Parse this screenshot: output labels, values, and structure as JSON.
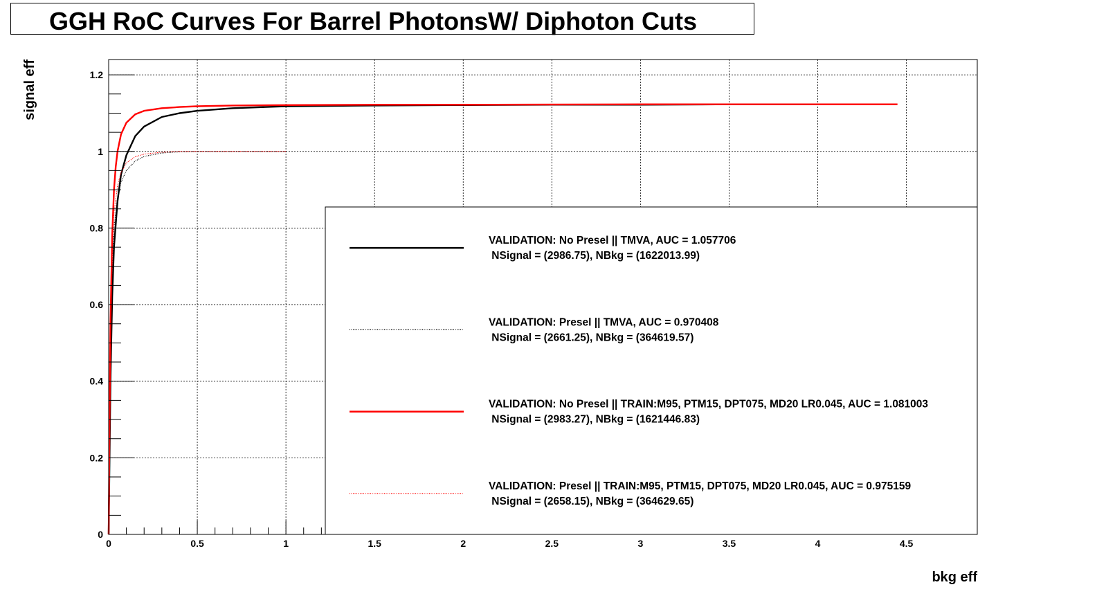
{
  "chart_data": {
    "type": "line",
    "title": "GGH RoC Curves For Barrel PhotonsW/ Diphoton Cuts",
    "xlabel": "bkg eff",
    "ylabel": "signal eff",
    "xlim": [
      0,
      4.9
    ],
    "ylim": [
      0,
      1.24
    ],
    "xticks": [
      {
        "v": 0,
        "label": "0"
      },
      {
        "v": 0.5,
        "label": "0.5"
      },
      {
        "v": 1,
        "label": "1"
      },
      {
        "v": 1.5,
        "label": "1.5"
      },
      {
        "v": 2,
        "label": "2"
      },
      {
        "v": 2.5,
        "label": "2.5"
      },
      {
        "v": 3,
        "label": "3"
      },
      {
        "v": 3.5,
        "label": "3.5"
      },
      {
        "v": 4,
        "label": "4"
      },
      {
        "v": 4.5,
        "label": "4.5"
      }
    ],
    "yticks": [
      {
        "v": 0,
        "label": "0"
      },
      {
        "v": 0.2,
        "label": "0.2"
      },
      {
        "v": 0.4,
        "label": "0.4"
      },
      {
        "v": 0.6,
        "label": "0.6"
      },
      {
        "v": 0.8,
        "label": "0.8"
      },
      {
        "v": 1,
        "label": "1"
      },
      {
        "v": 1.2,
        "label": "1.2"
      }
    ],
    "grid": true,
    "legend_position": "bottom-right",
    "series": [
      {
        "label_line1": "VALIDATION: No Presel || TMVA, AUC = 1.057706",
        "label_line2": " NSignal = (2986.75), NBkg = (1622013.99)",
        "color": "#000000",
        "style": "solid",
        "x": [
          0,
          0.005,
          0.01,
          0.02,
          0.03,
          0.05,
          0.07,
          0.1,
          0.15,
          0.2,
          0.3,
          0.4,
          0.5,
          0.7,
          1.0,
          1.5,
          2.0,
          2.5,
          3.0,
          3.5,
          4.0
        ],
        "y": [
          0,
          0.2,
          0.4,
          0.62,
          0.75,
          0.87,
          0.94,
          0.99,
          1.04,
          1.065,
          1.09,
          1.1,
          1.106,
          1.113,
          1.118,
          1.12,
          1.121,
          1.122,
          1.122,
          1.123,
          1.123
        ]
      },
      {
        "label_line1": "VALIDATION: Presel || TMVA, AUC = 0.970408",
        "label_line2": " NSignal = (2661.25), NBkg = (364619.57)",
        "color": "#000000",
        "style": "dotted",
        "x": [
          0,
          0.005,
          0.01,
          0.02,
          0.03,
          0.05,
          0.07,
          0.1,
          0.15,
          0.2,
          0.3,
          0.4,
          0.5,
          0.7,
          1.0
        ],
        "y": [
          0,
          0.3,
          0.5,
          0.7,
          0.8,
          0.88,
          0.92,
          0.95,
          0.975,
          0.987,
          0.996,
          0.999,
          1.0,
          1.0,
          1.0
        ]
      },
      {
        "label_line1": "VALIDATION: No Presel || TRAIN:M95, PTM15, DPT075, MD20 LR0.045, AUC = 1.081003",
        "label_line2": " NSignal = (2983.27), NBkg = (1621446.83)",
        "color": "#ff0000",
        "style": "solid",
        "x": [
          0,
          0.005,
          0.01,
          0.02,
          0.03,
          0.04,
          0.05,
          0.07,
          0.1,
          0.15,
          0.2,
          0.3,
          0.4,
          0.5,
          0.7,
          1.0,
          1.5,
          2.0,
          3.0,
          4.0,
          4.45
        ],
        "y": [
          0,
          0.3,
          0.55,
          0.78,
          0.9,
          0.96,
          1.0,
          1.045,
          1.075,
          1.097,
          1.106,
          1.113,
          1.116,
          1.118,
          1.12,
          1.121,
          1.122,
          1.122,
          1.123,
          1.123,
          1.123
        ]
      },
      {
        "label_line1": "VALIDATION: Presel || TRAIN:M95, PTM15, DPT075, MD20 LR0.045, AUC = 0.975159",
        "label_line2": " NSignal = (2658.15), NBkg = (364629.65)",
        "color": "#ff0000",
        "style": "dotted",
        "x": [
          0,
          0.005,
          0.01,
          0.02,
          0.03,
          0.05,
          0.07,
          0.1,
          0.15,
          0.2,
          0.3,
          0.4,
          0.5,
          0.7,
          1.0
        ],
        "y": [
          0,
          0.35,
          0.55,
          0.75,
          0.84,
          0.91,
          0.945,
          0.97,
          0.986,
          0.993,
          0.998,
          1.0,
          1.0,
          1.0,
          1.0
        ]
      }
    ]
  }
}
